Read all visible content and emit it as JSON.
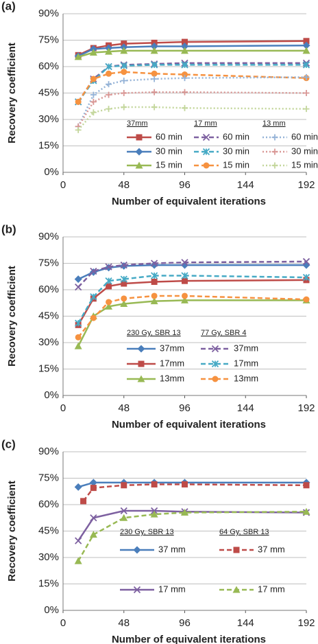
{
  "chart_data": [
    {
      "type": "line",
      "panel": "(a)",
      "y_label": "Recovery coefficient",
      "x_label": "Number of equivalent iterations",
      "x": [
        12,
        24,
        36,
        48,
        72,
        96,
        192
      ],
      "xlim": [
        0,
        192
      ],
      "xticks": [
        0,
        48,
        96,
        144,
        192
      ],
      "ylim": [
        0,
        90
      ],
      "yticks": [
        {
          "value": 0,
          "label": "0%"
        },
        {
          "value": 15,
          "label": "15%"
        },
        {
          "value": 30,
          "label": "30%"
        },
        {
          "value": 45,
          "label": "45%"
        },
        {
          "value": 60,
          "label": "60%"
        },
        {
          "value": 75,
          "label": "75%"
        },
        {
          "value": 90,
          "label": "90%"
        }
      ],
      "grid": true,
      "groups": [
        {
          "name": "37mm",
          "series": [
            {
              "name": "60 min",
              "color": "#be4b48",
              "marker": "square",
              "line_style": "solid",
              "values": [
                66.5,
                70.5,
                72,
                73,
                73.5,
                74,
                74.5
              ]
            },
            {
              "name": "30 min",
              "color": "#4a7ebb",
              "marker": "diamond",
              "line_style": "solid",
              "values": [
                66,
                70,
                70.5,
                71,
                71.5,
                71.5,
                72
              ]
            },
            {
              "name": "15 min",
              "color": "#98b954",
              "marker": "triangle",
              "line_style": "solid",
              "values": [
                65.5,
                68,
                68.5,
                69,
                69,
                69,
                69
              ]
            }
          ]
        },
        {
          "name": "17 mm",
          "series": [
            {
              "name": "60 min",
              "color": "#7d60a0",
              "marker": "x",
              "line_style": "dashed",
              "values": [
                40,
                53,
                60,
                61,
                61.5,
                62,
                62
              ]
            },
            {
              "name": "30 min",
              "color": "#46aac5",
              "marker": "asterisk",
              "line_style": "dashed",
              "values": [
                40,
                52,
                60,
                60.5,
                61,
                61,
                61
              ]
            },
            {
              "name": "15 min",
              "color": "#f69240",
              "marker": "circle",
              "line_style": "dashed",
              "values": [
                40,
                53,
                56,
                57,
                56,
                55.5,
                53.5
              ]
            }
          ]
        },
        {
          "name": "13 mm",
          "series": [
            {
              "name": "60 min",
              "color": "#95b3d7",
              "marker": "plus",
              "line_style": "dotted",
              "values": [
                26,
                44,
                50,
                52,
                53,
                53.5,
                54
              ]
            },
            {
              "name": "30 min",
              "color": "#d99795",
              "marker": "plus",
              "line_style": "dotted",
              "values": [
                26,
                40,
                44,
                45,
                45.5,
                45.5,
                45
              ]
            },
            {
              "name": "15 min",
              "color": "#c3d69b",
              "marker": "plus",
              "line_style": "dotted",
              "values": [
                24,
                34,
                36,
                37,
                37,
                36.5,
                36
              ]
            }
          ]
        }
      ]
    },
    {
      "type": "line",
      "panel": "(b)",
      "y_label": "Recovery coefficient",
      "x_label": "Number of equivalent iterations",
      "x": [
        12,
        24,
        36,
        48,
        72,
        96,
        192
      ],
      "xlim": [
        0,
        192
      ],
      "xticks": [
        0,
        48,
        96,
        144,
        192
      ],
      "ylim": [
        0,
        90
      ],
      "yticks": [
        {
          "value": 0,
          "label": "0%"
        },
        {
          "value": 15,
          "label": "15%"
        },
        {
          "value": 30,
          "label": "30%"
        },
        {
          "value": 45,
          "label": "45%"
        },
        {
          "value": 60,
          "label": "60%"
        },
        {
          "value": 75,
          "label": "75%"
        },
        {
          "value": 90,
          "label": "90%"
        }
      ],
      "grid": true,
      "groups": [
        {
          "name": "230 Gy, SBR 13",
          "series": [
            {
              "name": "37mm",
              "color": "#4a7ebb",
              "marker": "diamond",
              "line_style": "solid",
              "values": [
                66,
                70,
                72.5,
                73.5,
                74,
                74,
                74
              ]
            },
            {
              "name": "17mm",
              "color": "#be4b48",
              "marker": "square",
              "line_style": "solid",
              "values": [
                40,
                55,
                62,
                63.5,
                64.5,
                65,
                65.5
              ]
            },
            {
              "name": "13mm",
              "color": "#98b954",
              "marker": "triangle",
              "line_style": "solid",
              "values": [
                28,
                45,
                50.5,
                52,
                53.5,
                54,
                54
              ]
            }
          ]
        },
        {
          "name": "77 Gy, SBR 4",
          "series": [
            {
              "name": "37mm",
              "color": "#7d60a0",
              "marker": "x",
              "line_style": "dashed",
              "values": [
                61.5,
                70.5,
                73,
                74,
                75,
                75.5,
                76
              ]
            },
            {
              "name": "17mm",
              "color": "#46aac5",
              "marker": "asterisk",
              "line_style": "dashed",
              "values": [
                41,
                56,
                65,
                66,
                68,
                68,
                67
              ]
            },
            {
              "name": "13mm",
              "color": "#f69240",
              "marker": "circle",
              "line_style": "dashed",
              "values": [
                33,
                44,
                53,
                55,
                56.5,
                56.5,
                54.5
              ]
            }
          ]
        }
      ]
    },
    {
      "type": "line",
      "panel": "(c)",
      "y_label": "Recovery coefficient",
      "x_label": "Number of equivalent iterations",
      "x": [
        12,
        24,
        48,
        72,
        96,
        192
      ],
      "xlim": [
        0,
        192
      ],
      "xticks": [
        0,
        48,
        96,
        144,
        192
      ],
      "ylim": [
        0,
        90
      ],
      "yticks": [
        {
          "value": 0,
          "label": "0%"
        },
        {
          "value": 15,
          "label": "15%"
        },
        {
          "value": 30,
          "label": "30%"
        },
        {
          "value": 45,
          "label": "45%"
        },
        {
          "value": 60,
          "label": "60%"
        },
        {
          "value": 75,
          "label": "75%"
        },
        {
          "value": 90,
          "label": "90%"
        }
      ],
      "grid": true,
      "groups": [
        {
          "name": "230 Gy, SBR 13",
          "series": [
            {
              "name": "37 mm",
              "color": "#4a7ebb",
              "marker": "diamond",
              "line_style": "solid",
              "values": [
                70,
                72.5,
                72.5,
                72.5,
                72.5,
                72.5
              ]
            },
            {
              "name": "17 mm",
              "color": "#7d60a0",
              "marker": "x",
              "line_style": "solid",
              "values": [
                39.5,
                52.5,
                56.5,
                56.5,
                56,
                55.5
              ]
            }
          ]
        },
        {
          "name": "64 Gy, SBR 13",
          "series": [
            {
              "name": "37 mm",
              "color": "#be4b48",
              "marker": "square",
              "line_style": "dashed",
              "x": [
                16,
                24,
                48,
                72,
                96,
                192
              ],
              "values": [
                62,
                69.5,
                71,
                71.5,
                71.5,
                71
              ]
            },
            {
              "name": "17 mm",
              "color": "#98b954",
              "marker": "triangle",
              "line_style": "dashed",
              "values": [
                28,
                43,
                52.5,
                54.5,
                55.5,
                56
              ]
            }
          ]
        }
      ]
    }
  ]
}
